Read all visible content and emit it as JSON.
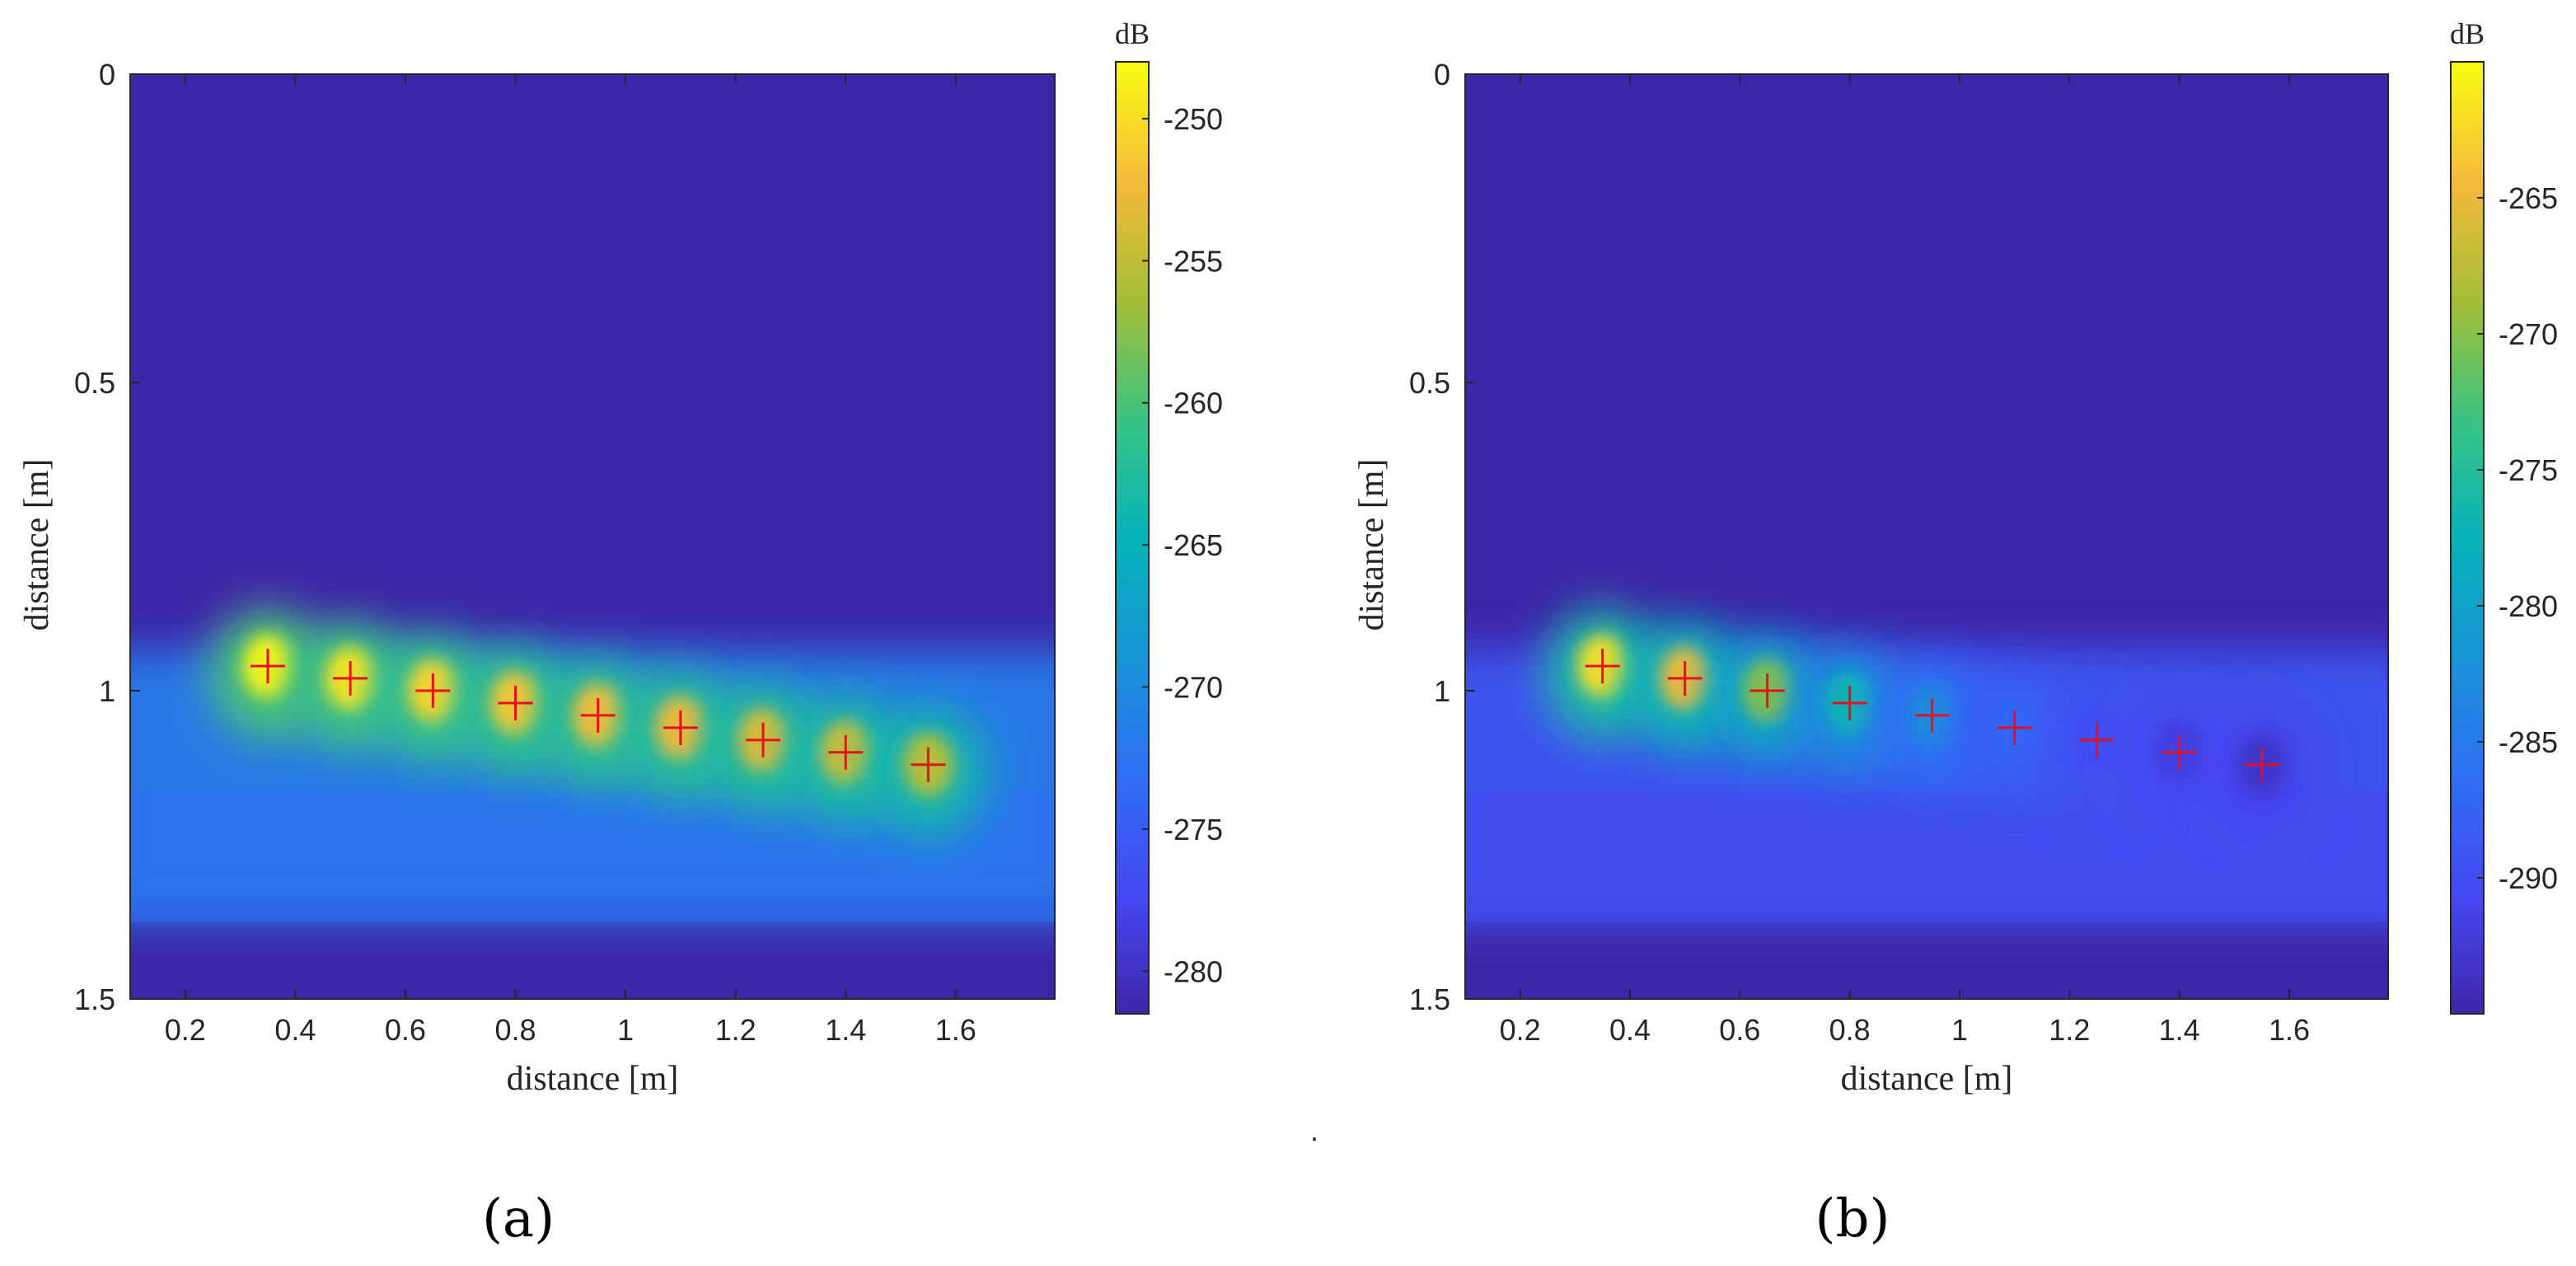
{
  "chart_data": [
    {
      "type": "heatmap",
      "panel_label": "(a)",
      "xlabel": "distance [m]",
      "ylabel": "distance [m]",
      "xlim": [
        0.1,
        1.78
      ],
      "ylim": [
        1.5,
        0
      ],
      "y_reversed": true,
      "x_ticks": [
        "0.2",
        "0.4",
        "0.6",
        "0.8",
        "1",
        "1.2",
        "1.4",
        "1.6"
      ],
      "x_tick_values": [
        0.2,
        0.4,
        0.6,
        0.8,
        1.0,
        1.2,
        1.4,
        1.6
      ],
      "y_ticks": [
        "0",
        "0.5",
        "1",
        "1.5"
      ],
      "y_tick_values": [
        0,
        0.5,
        1.0,
        1.5
      ],
      "colorbar": {
        "unit": "dB",
        "range": [
          -281.5,
          -248
        ],
        "ticks": [
          "-250",
          "-255",
          "-260",
          "-265",
          "-270",
          "-275",
          "-280"
        ],
        "tick_values": [
          -250,
          -255,
          -260,
          -265,
          -270,
          -275,
          -280
        ]
      },
      "markers": [
        {
          "x": 0.35,
          "y": 0.96,
          "level": -248.5
        },
        {
          "x": 0.5,
          "y": 0.98,
          "level": -249.5
        },
        {
          "x": 0.65,
          "y": 1.0,
          "level": -250.5
        },
        {
          "x": 0.8,
          "y": 1.02,
          "level": -251.5
        },
        {
          "x": 0.95,
          "y": 1.04,
          "level": -252.0
        },
        {
          "x": 1.1,
          "y": 1.06,
          "level": -252.5
        },
        {
          "x": 1.25,
          "y": 1.08,
          "level": -253.5
        },
        {
          "x": 1.4,
          "y": 1.1,
          "level": -254.5
        },
        {
          "x": 1.55,
          "y": 1.12,
          "level": -255.5
        }
      ],
      "marker_color": "#e8101c",
      "background_level": -281.5,
      "region_y": [
        0.88,
        1.375
      ],
      "region_level": -271.5
    },
    {
      "type": "heatmap",
      "panel_label": "(b)",
      "xlabel": "distance [m]",
      "ylabel": "distance [m]",
      "xlim": [
        0.1,
        1.78
      ],
      "ylim": [
        1.5,
        0
      ],
      "y_reversed": true,
      "x_ticks": [
        "0.2",
        "0.4",
        "0.6",
        "0.8",
        "1",
        "1.2",
        "1.4",
        "1.6"
      ],
      "x_tick_values": [
        0.2,
        0.4,
        0.6,
        0.8,
        1.0,
        1.2,
        1.4,
        1.6
      ],
      "y_ticks": [
        "0",
        "0.5",
        "1",
        "1.5"
      ],
      "y_tick_values": [
        0,
        0.5,
        1.0,
        1.5
      ],
      "colorbar": {
        "unit": "dB",
        "range": [
          -295,
          -260
        ],
        "ticks": [
          "-265",
          "-270",
          "-275",
          "-280",
          "-285",
          "-290"
        ],
        "tick_values": [
          -265,
          -270,
          -275,
          -280,
          -285,
          -290
        ]
      },
      "markers": [
        {
          "x": 0.35,
          "y": 0.96,
          "level": -262.0
        },
        {
          "x": 0.5,
          "y": 0.98,
          "level": -265.0
        },
        {
          "x": 0.65,
          "y": 1.0,
          "level": -270.0
        },
        {
          "x": 0.8,
          "y": 1.02,
          "level": -277.0
        },
        {
          "x": 0.95,
          "y": 1.04,
          "level": -283.0
        },
        {
          "x": 1.1,
          "y": 1.06,
          "level": -287.0
        },
        {
          "x": 1.25,
          "y": 1.08,
          "level": -290.0
        },
        {
          "x": 1.4,
          "y": 1.1,
          "level": -292.0
        },
        {
          "x": 1.55,
          "y": 1.12,
          "level": -293.0
        }
      ],
      "marker_color": "#e8101c",
      "background_level": -295,
      "region_y": [
        0.88,
        1.375
      ],
      "region_level": -289
    }
  ],
  "footnote_mark": "."
}
